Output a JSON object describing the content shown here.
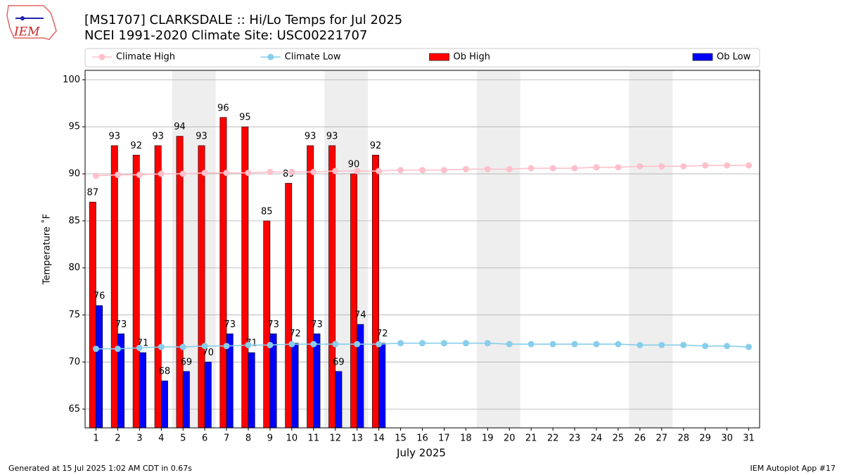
{
  "logo_text": "IEM",
  "footer": {
    "left": "Generated at 15 Jul 2025 1:02 AM CDT in 0.67s",
    "right": "IEM Autoplot App #17"
  },
  "chart_data": {
    "type": "bar_line",
    "title": "[MS1707] CLARKSDALE :: Hi/Lo Temps for Jul 2025",
    "subtitle": "NCEI 1991-2020 Climate Site: USC00221707",
    "xlabel": "July 2025",
    "ylabel": "Temperature ˚F",
    "x": [
      1,
      2,
      3,
      4,
      5,
      6,
      7,
      8,
      9,
      10,
      11,
      12,
      13,
      14,
      15,
      16,
      17,
      18,
      19,
      20,
      21,
      22,
      23,
      24,
      25,
      26,
      27,
      28,
      29,
      30,
      31
    ],
    "xticks": [
      1,
      2,
      3,
      4,
      5,
      6,
      7,
      8,
      9,
      10,
      11,
      12,
      13,
      14,
      15,
      16,
      17,
      18,
      19,
      20,
      21,
      22,
      23,
      24,
      25,
      26,
      27,
      28,
      29,
      30,
      31
    ],
    "xlim": [
      0.5,
      31.5
    ],
    "ylim": [
      63,
      101
    ],
    "yticks": [
      65,
      70,
      75,
      80,
      85,
      90,
      95,
      100
    ],
    "grid": true,
    "legend": "top",
    "shaded": [
      [
        4.5,
        6.5
      ],
      [
        11.5,
        13.5
      ],
      [
        18.5,
        20.5
      ],
      [
        25.5,
        27.5
      ]
    ],
    "shade_color": "#eeeeee",
    "series": [
      {
        "name": "Climate High",
        "type": "line",
        "color": "pink",
        "values": [
          89.8,
          89.9,
          89.9,
          90.0,
          90.0,
          90.1,
          90.1,
          90.1,
          90.2,
          90.2,
          90.2,
          90.3,
          90.3,
          90.3,
          90.4,
          90.4,
          90.4,
          90.5,
          90.5,
          90.5,
          90.6,
          90.6,
          90.6,
          90.7,
          90.7,
          90.8,
          90.8,
          90.8,
          90.9,
          90.9,
          90.9
        ]
      },
      {
        "name": "Climate Low",
        "type": "line",
        "color": "skyblue",
        "values": [
          71.4,
          71.4,
          71.5,
          71.6,
          71.6,
          71.7,
          71.7,
          71.8,
          71.8,
          71.9,
          71.9,
          71.9,
          71.9,
          71.9,
          72.0,
          72.0,
          72.0,
          72.0,
          72.0,
          71.9,
          71.9,
          71.9,
          71.9,
          71.9,
          71.9,
          71.8,
          71.8,
          71.8,
          71.7,
          71.7,
          71.6
        ]
      },
      {
        "name": "Ob High",
        "type": "bar",
        "color": "#ff0000",
        "offset": -0.15,
        "values": [
          87,
          93,
          92,
          93,
          94,
          93,
          96,
          95,
          85,
          89,
          93,
          93,
          90,
          92,
          null,
          null,
          null,
          null,
          null,
          null,
          null,
          null,
          null,
          null,
          null,
          null,
          null,
          null,
          null,
          null,
          null
        ]
      },
      {
        "name": "Ob Low",
        "type": "bar",
        "color": "#0000ff",
        "offset": 0.15,
        "values": [
          76,
          73,
          71,
          68,
          69,
          70,
          73,
          71,
          73,
          72,
          73,
          69,
          74,
          72,
          null,
          null,
          null,
          null,
          null,
          null,
          null,
          null,
          null,
          null,
          null,
          null,
          null,
          null,
          null,
          null,
          null
        ]
      }
    ]
  }
}
